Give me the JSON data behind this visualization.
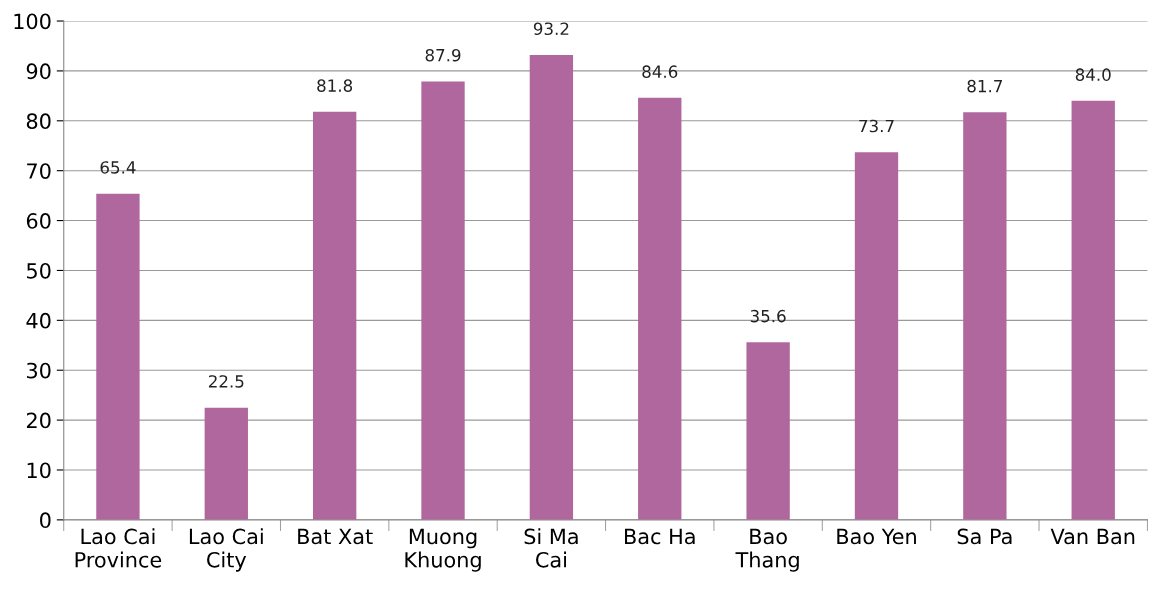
{
  "chart_data": {
    "type": "bar",
    "categories": [
      "Lao Cai\nProvince",
      "Lao Cai\nCity",
      "Bat Xat",
      "Muong\nKhuong",
      "Si Ma\nCai",
      "Bac Ha",
      "Bao\nThang",
      "Bao Yen",
      "Sa Pa",
      "Van Ban"
    ],
    "values": [
      65.4,
      22.5,
      81.8,
      87.9,
      93.2,
      84.6,
      35.6,
      73.7,
      81.7,
      84.0
    ],
    "value_labels": [
      "65.4",
      "22.5",
      "81.8",
      "87.9",
      "93.2",
      "84.6",
      "35.6",
      "73.7",
      "81.7",
      "84.0"
    ],
    "color": "#b0679e",
    "ylim": [
      0,
      100
    ],
    "yticks": [
      0,
      10,
      20,
      30,
      40,
      50,
      60,
      70,
      80,
      90,
      100
    ],
    "grid": "y"
  }
}
